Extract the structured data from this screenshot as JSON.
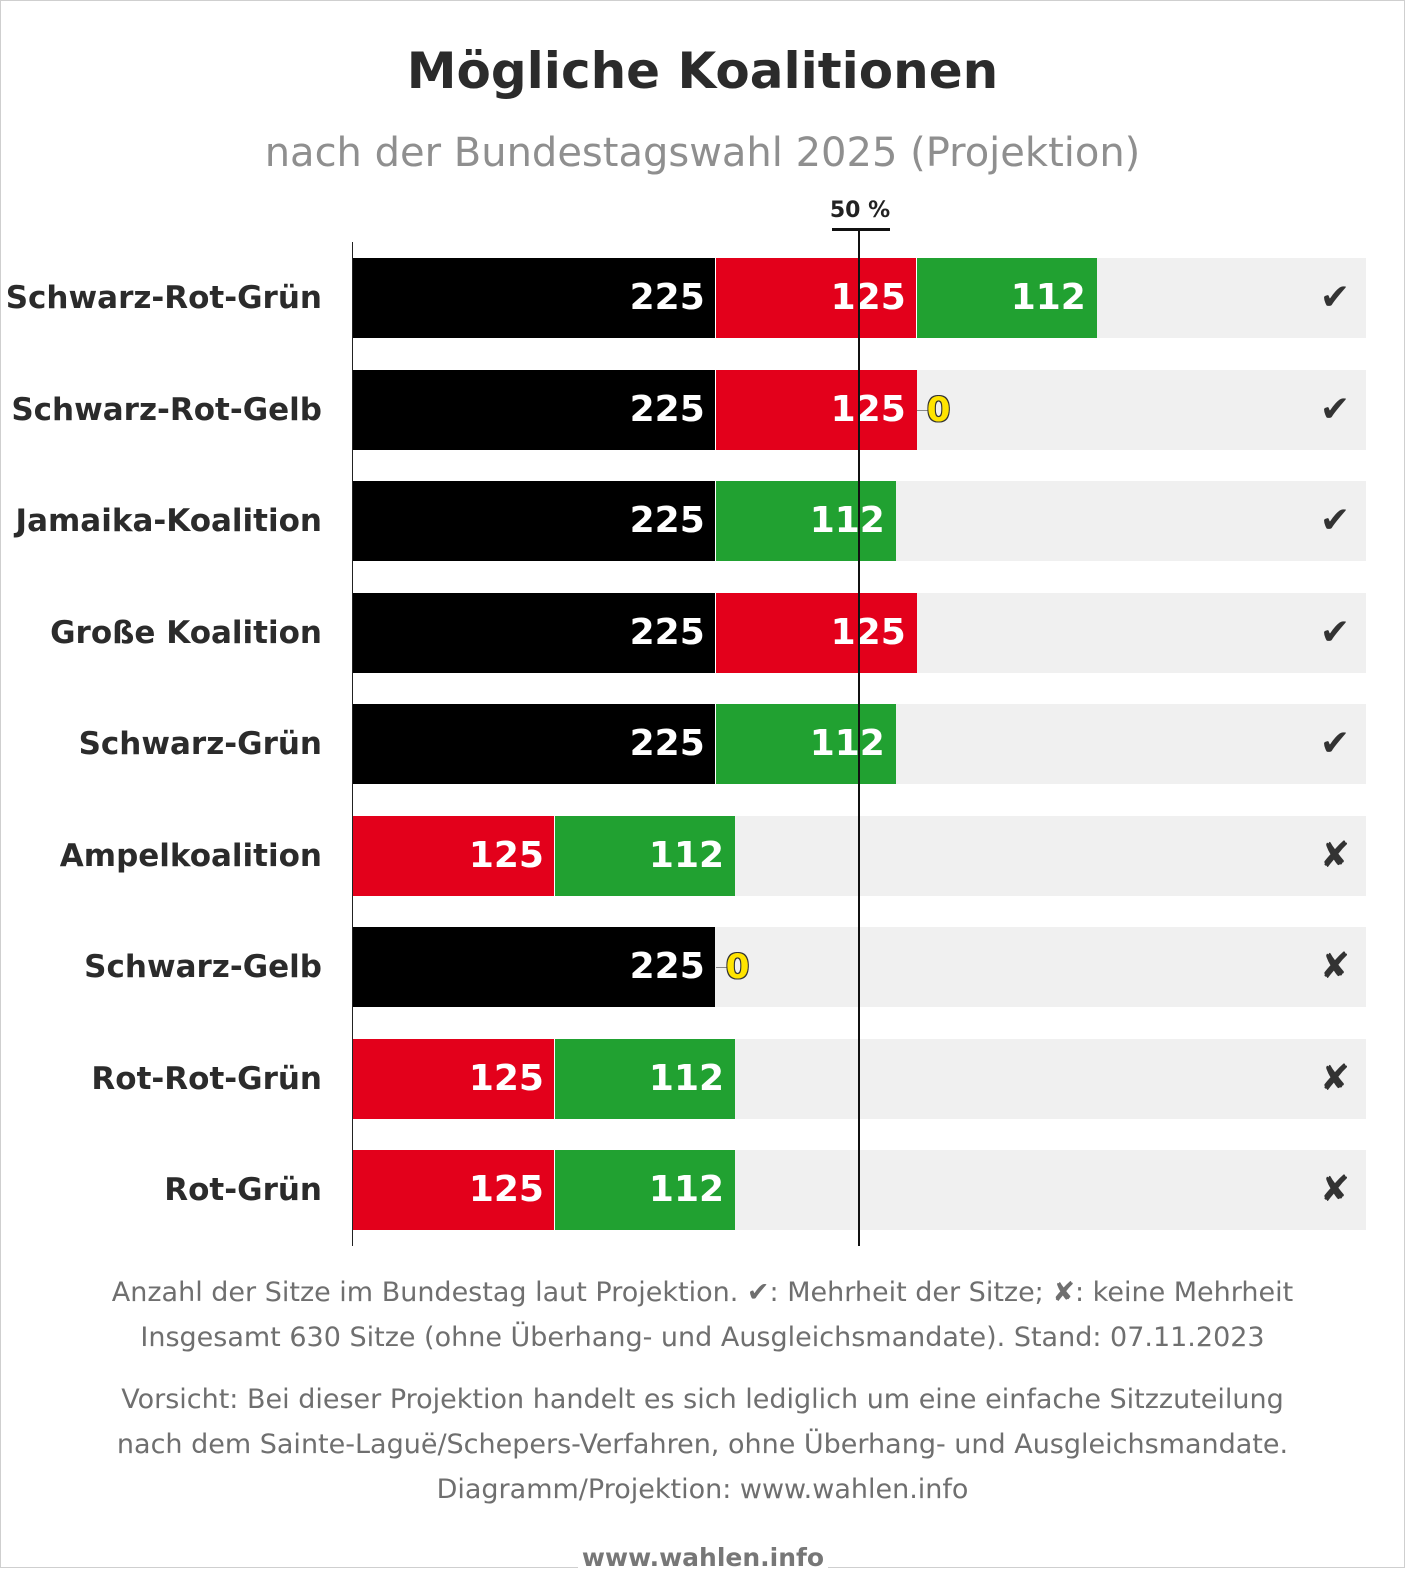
{
  "title": "Mögliche Koalitionen",
  "subtitle": "nach der Bundestagswahl 2025 (Projektion)",
  "threshold_label": "50 %",
  "notes": {
    "line1": "Anzahl der Sitze im Bundestag laut Projektion. ✔: Mehrheit der Sitze; ✘: keine Mehrheit",
    "line2": "Insgesamt 630 Sitze (ohne Überhang- und Ausgleichsmandate). Stand: 07.11.2023",
    "line3": "Vorsicht: Bei dieser Projektion handelt es sich lediglich um eine einfache Sitzzuteilung",
    "line4": "nach dem Sainte-Laguë/Schepers-Verfahren, ohne Überhang- und Ausgleichsmandate.",
    "line5": "Diagramm/Projektion: www.wahlen.info"
  },
  "footer_brand": "www.wahlen.info",
  "colors": {
    "black": "#000000",
    "red": "#e3001b",
    "green": "#21a131",
    "yellow": "#ffe400",
    "purple": "#7a3cb8",
    "track": "#f0f0f0"
  },
  "chart_data": {
    "type": "bar",
    "orientation": "horizontal",
    "stacked": true,
    "total_seats": 630,
    "majority_threshold_percent": 50,
    "xlim": [
      0,
      630
    ],
    "rows": [
      {
        "name": "Schwarz-Rot-Grün",
        "status": "✔",
        "segments": [
          {
            "party_color": "black",
            "value": 225
          },
          {
            "party_color": "red",
            "value": 125
          },
          {
            "party_color": "green",
            "value": 112
          }
        ]
      },
      {
        "name": "Schwarz-Rot-Gelb",
        "status": "✔",
        "segments": [
          {
            "party_color": "black",
            "value": 225
          },
          {
            "party_color": "red",
            "value": 125
          },
          {
            "party_color": "yellow",
            "value": 0
          }
        ]
      },
      {
        "name": "Jamaika-Koalition",
        "status": "✔",
        "segments": [
          {
            "party_color": "black",
            "value": 225
          },
          {
            "party_color": "yellow",
            "value": 0
          },
          {
            "party_color": "green",
            "value": 112
          }
        ]
      },
      {
        "name": "Große Koalition",
        "status": "✔",
        "segments": [
          {
            "party_color": "black",
            "value": 225
          },
          {
            "party_color": "red",
            "value": 125
          }
        ]
      },
      {
        "name": "Schwarz-Grün",
        "status": "✔",
        "segments": [
          {
            "party_color": "black",
            "value": 225
          },
          {
            "party_color": "green",
            "value": 112
          }
        ]
      },
      {
        "name": "Ampelkoalition",
        "status": "✘",
        "segments": [
          {
            "party_color": "red",
            "value": 125
          },
          {
            "party_color": "yellow",
            "value": 0
          },
          {
            "party_color": "green",
            "value": 112
          }
        ]
      },
      {
        "name": "Schwarz-Gelb",
        "status": "✘",
        "segments": [
          {
            "party_color": "black",
            "value": 225
          },
          {
            "party_color": "yellow",
            "value": 0
          }
        ]
      },
      {
        "name": "Rot-Rot-Grün",
        "status": "✘",
        "segments": [
          {
            "party_color": "red",
            "value": 125
          },
          {
            "party_color": "purple",
            "value": 0
          },
          {
            "party_color": "green",
            "value": 112
          }
        ]
      },
      {
        "name": "Rot-Grün",
        "status": "✘",
        "segments": [
          {
            "party_color": "red",
            "value": 125
          },
          {
            "party_color": "green",
            "value": 112
          }
        ]
      }
    ]
  }
}
